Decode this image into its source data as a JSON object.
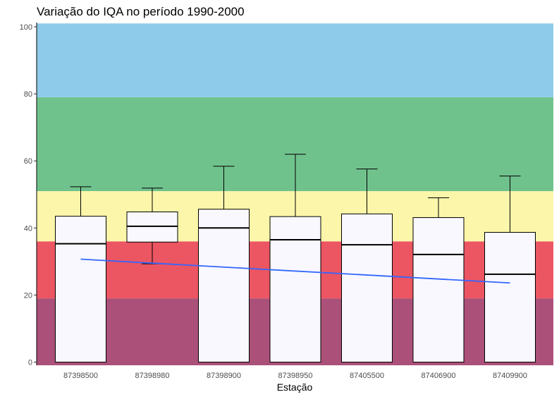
{
  "chart_data": {
    "type": "boxplot",
    "title": "Variação do IQA no período 1990-2000",
    "xlabel": "Estação",
    "ylabel": "",
    "ylim": [
      0,
      100
    ],
    "yticks": [
      0,
      20,
      40,
      60,
      80,
      100
    ],
    "categories": [
      "87398500",
      "87398980",
      "87398900",
      "87398950",
      "87405500",
      "87406900",
      "87409900"
    ],
    "boxes": [
      {
        "min": 0,
        "q1": 0,
        "median": 35.3,
        "q3": 43.5,
        "max": 52.3
      },
      {
        "min": 29.3,
        "q1": 35.8,
        "median": 40.5,
        "q3": 44.8,
        "max": 51.9
      },
      {
        "min": 0,
        "q1": 0,
        "median": 40.0,
        "q3": 45.6,
        "max": 58.4
      },
      {
        "min": 0,
        "q1": 0,
        "median": 36.5,
        "q3": 43.4,
        "max": 62.0
      },
      {
        "min": 0,
        "q1": 0,
        "median": 35.0,
        "q3": 44.2,
        "max": 57.6
      },
      {
        "min": 0,
        "q1": 0,
        "median": 32.1,
        "q3": 43.1,
        "max": 49.0
      },
      {
        "min": 0,
        "q1": 0,
        "median": 26.2,
        "q3": 38.7,
        "max": 55.5
      }
    ],
    "trend_line": {
      "x_start": "87398500",
      "x_end": "87409900",
      "y_start": 30.7,
      "y_end": 23.6,
      "color": "#3366ff"
    },
    "bands": [
      {
        "from": 0,
        "to": 19,
        "color": "#ab5079"
      },
      {
        "from": 19,
        "to": 36,
        "color": "#ec5562"
      },
      {
        "from": 36,
        "to": 51,
        "color": "#fbf6aa"
      },
      {
        "from": 51,
        "to": 79,
        "color": "#70c28d"
      },
      {
        "from": 79,
        "to": 101,
        "color": "#8ecae9"
      }
    ],
    "box_fill": "#f8f8fe",
    "grid": false
  }
}
